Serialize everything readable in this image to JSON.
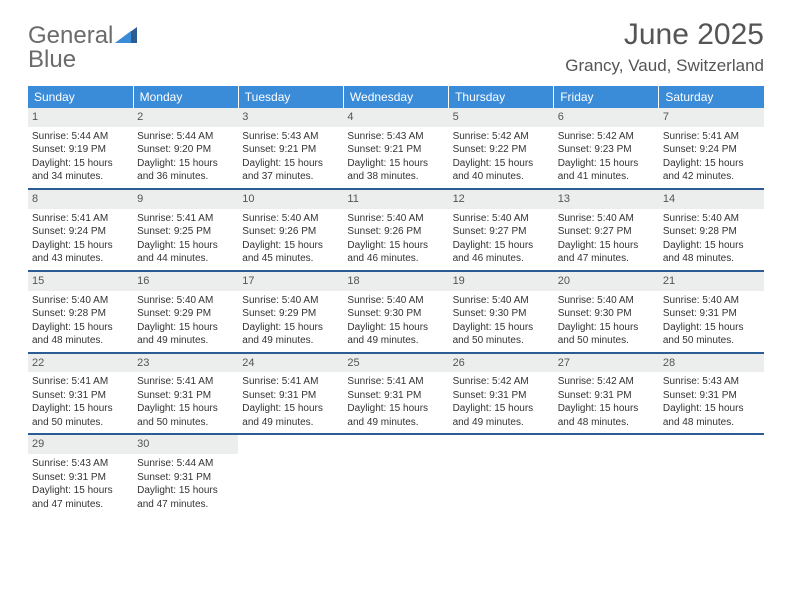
{
  "brand": {
    "word1": "General",
    "word2": "Blue"
  },
  "title": "June 2025",
  "location": "Grancy, Vaud, Switzerland",
  "colors": {
    "header_bg": "#3a8bd8",
    "week_divider": "#2b5c94",
    "daynum_bg": "#eceded",
    "text": "#333333",
    "title_text": "#555555"
  },
  "daysOfWeek": [
    "Sunday",
    "Monday",
    "Tuesday",
    "Wednesday",
    "Thursday",
    "Friday",
    "Saturday"
  ],
  "weeks": [
    [
      {
        "num": "1",
        "sunrise": "5:44 AM",
        "sunset": "9:19 PM",
        "daylight": "15 hours and 34 minutes."
      },
      {
        "num": "2",
        "sunrise": "5:44 AM",
        "sunset": "9:20 PM",
        "daylight": "15 hours and 36 minutes."
      },
      {
        "num": "3",
        "sunrise": "5:43 AM",
        "sunset": "9:21 PM",
        "daylight": "15 hours and 37 minutes."
      },
      {
        "num": "4",
        "sunrise": "5:43 AM",
        "sunset": "9:21 PM",
        "daylight": "15 hours and 38 minutes."
      },
      {
        "num": "5",
        "sunrise": "5:42 AM",
        "sunset": "9:22 PM",
        "daylight": "15 hours and 40 minutes."
      },
      {
        "num": "6",
        "sunrise": "5:42 AM",
        "sunset": "9:23 PM",
        "daylight": "15 hours and 41 minutes."
      },
      {
        "num": "7",
        "sunrise": "5:41 AM",
        "sunset": "9:24 PM",
        "daylight": "15 hours and 42 minutes."
      }
    ],
    [
      {
        "num": "8",
        "sunrise": "5:41 AM",
        "sunset": "9:24 PM",
        "daylight": "15 hours and 43 minutes."
      },
      {
        "num": "9",
        "sunrise": "5:41 AM",
        "sunset": "9:25 PM",
        "daylight": "15 hours and 44 minutes."
      },
      {
        "num": "10",
        "sunrise": "5:40 AM",
        "sunset": "9:26 PM",
        "daylight": "15 hours and 45 minutes."
      },
      {
        "num": "11",
        "sunrise": "5:40 AM",
        "sunset": "9:26 PM",
        "daylight": "15 hours and 46 minutes."
      },
      {
        "num": "12",
        "sunrise": "5:40 AM",
        "sunset": "9:27 PM",
        "daylight": "15 hours and 46 minutes."
      },
      {
        "num": "13",
        "sunrise": "5:40 AM",
        "sunset": "9:27 PM",
        "daylight": "15 hours and 47 minutes."
      },
      {
        "num": "14",
        "sunrise": "5:40 AM",
        "sunset": "9:28 PM",
        "daylight": "15 hours and 48 minutes."
      }
    ],
    [
      {
        "num": "15",
        "sunrise": "5:40 AM",
        "sunset": "9:28 PM",
        "daylight": "15 hours and 48 minutes."
      },
      {
        "num": "16",
        "sunrise": "5:40 AM",
        "sunset": "9:29 PM",
        "daylight": "15 hours and 49 minutes."
      },
      {
        "num": "17",
        "sunrise": "5:40 AM",
        "sunset": "9:29 PM",
        "daylight": "15 hours and 49 minutes."
      },
      {
        "num": "18",
        "sunrise": "5:40 AM",
        "sunset": "9:30 PM",
        "daylight": "15 hours and 49 minutes."
      },
      {
        "num": "19",
        "sunrise": "5:40 AM",
        "sunset": "9:30 PM",
        "daylight": "15 hours and 50 minutes."
      },
      {
        "num": "20",
        "sunrise": "5:40 AM",
        "sunset": "9:30 PM",
        "daylight": "15 hours and 50 minutes."
      },
      {
        "num": "21",
        "sunrise": "5:40 AM",
        "sunset": "9:31 PM",
        "daylight": "15 hours and 50 minutes."
      }
    ],
    [
      {
        "num": "22",
        "sunrise": "5:41 AM",
        "sunset": "9:31 PM",
        "daylight": "15 hours and 50 minutes."
      },
      {
        "num": "23",
        "sunrise": "5:41 AM",
        "sunset": "9:31 PM",
        "daylight": "15 hours and 50 minutes."
      },
      {
        "num": "24",
        "sunrise": "5:41 AM",
        "sunset": "9:31 PM",
        "daylight": "15 hours and 49 minutes."
      },
      {
        "num": "25",
        "sunrise": "5:41 AM",
        "sunset": "9:31 PM",
        "daylight": "15 hours and 49 minutes."
      },
      {
        "num": "26",
        "sunrise": "5:42 AM",
        "sunset": "9:31 PM",
        "daylight": "15 hours and 49 minutes."
      },
      {
        "num": "27",
        "sunrise": "5:42 AM",
        "sunset": "9:31 PM",
        "daylight": "15 hours and 48 minutes."
      },
      {
        "num": "28",
        "sunrise": "5:43 AM",
        "sunset": "9:31 PM",
        "daylight": "15 hours and 48 minutes."
      }
    ],
    [
      {
        "num": "29",
        "sunrise": "5:43 AM",
        "sunset": "9:31 PM",
        "daylight": "15 hours and 47 minutes."
      },
      {
        "num": "30",
        "sunrise": "5:44 AM",
        "sunset": "9:31 PM",
        "daylight": "15 hours and 47 minutes."
      },
      null,
      null,
      null,
      null,
      null
    ]
  ],
  "labels": {
    "sunrise_prefix": "Sunrise: ",
    "sunset_prefix": "Sunset: ",
    "daylight_prefix": "Daylight: "
  }
}
